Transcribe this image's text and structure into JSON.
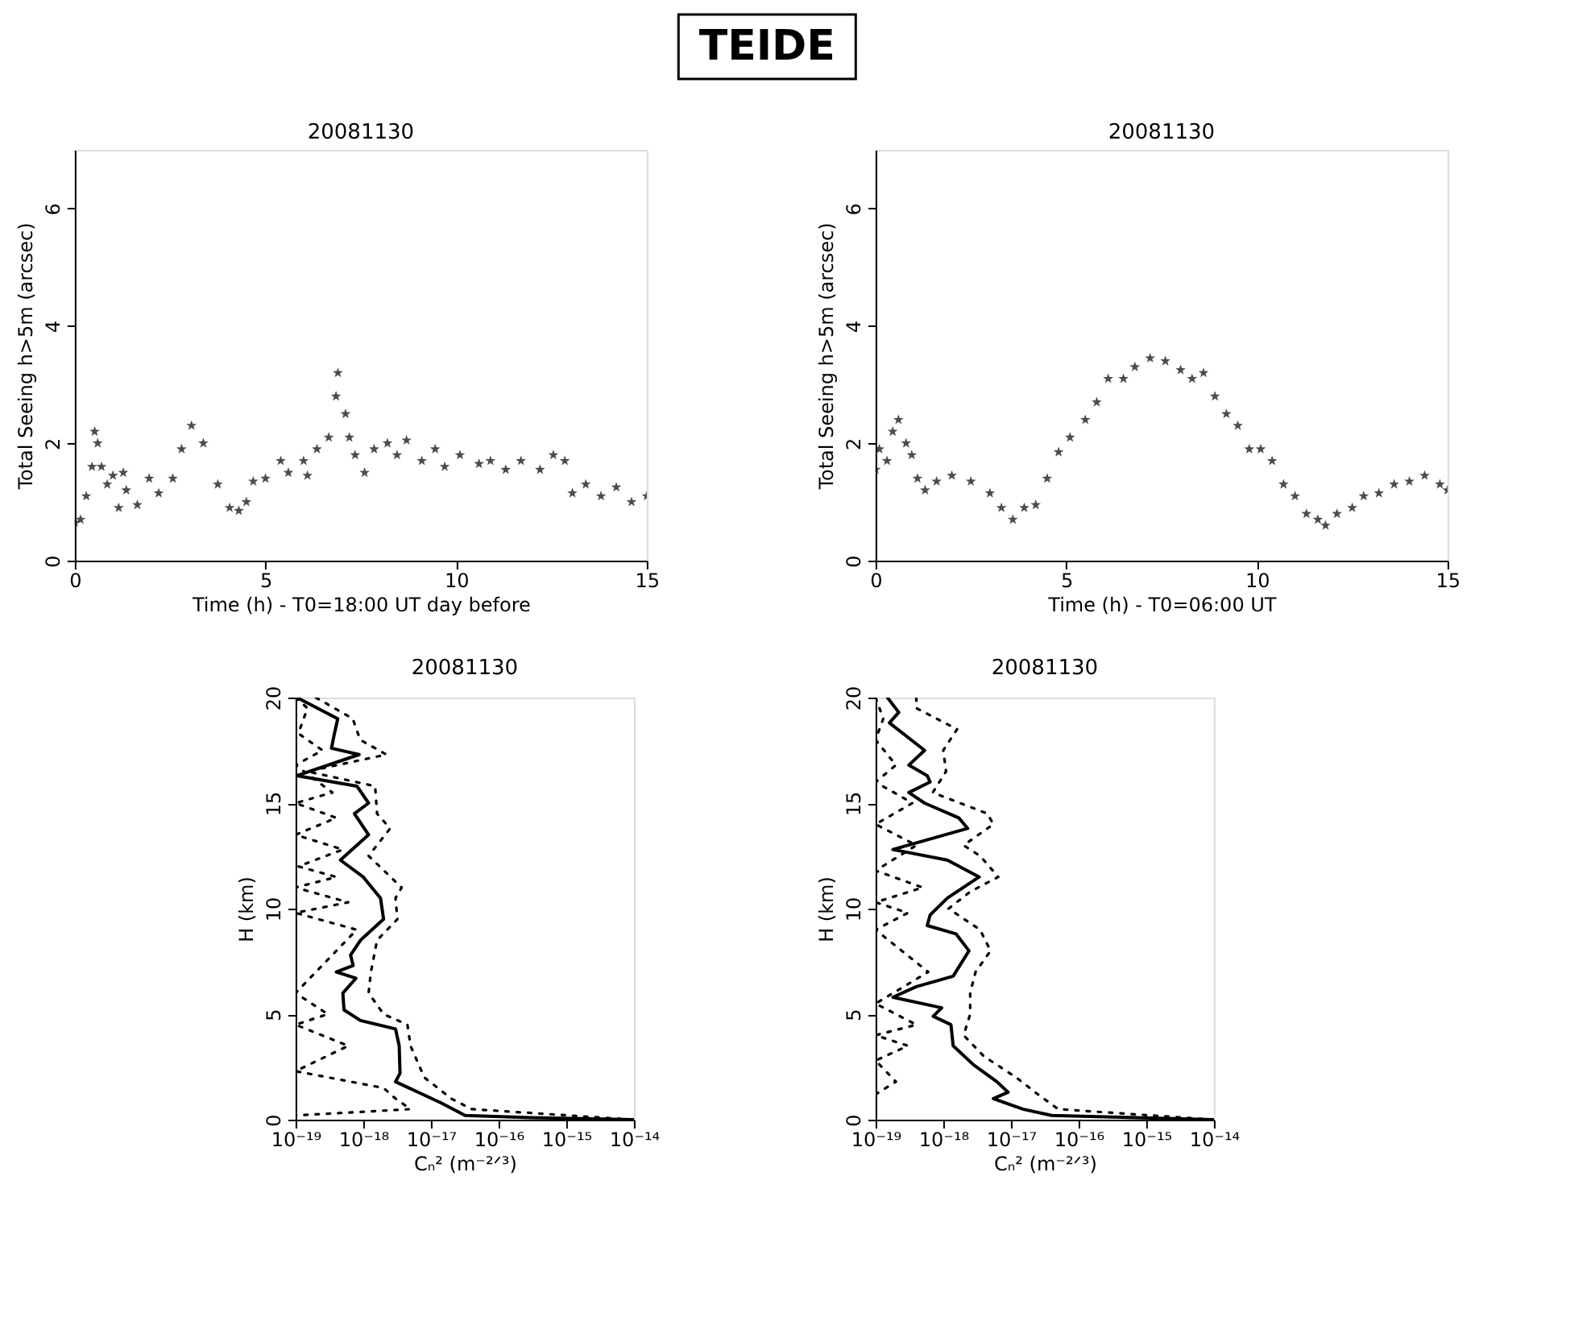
{
  "chart_data": [
    {
      "type": "other",
      "title": "TEIDE"
    },
    {
      "type": "scatter",
      "title": "20081130",
      "xlabel": "Time (h) - T0=18:00 UT day before",
      "ylabel": "Total Seeing h>5m (arcsec)",
      "xlim": [
        0,
        15
      ],
      "ylim": [
        0,
        7
      ],
      "xticks": [
        0,
        5,
        10,
        15
      ],
      "yticks": [
        0,
        2,
        4,
        6
      ],
      "marker": "star",
      "grid": false,
      "series": [
        {
          "color": "#000000",
          "x": [
            0,
            0.15,
            0.3,
            0.45,
            0.52,
            0.6,
            0.7,
            0.85,
            1.0,
            1.15,
            1.27,
            1.35,
            1.64,
            1.95,
            2.2,
            2.57,
            2.8,
            3.06,
            3.37,
            3.75,
            4.06,
            4.3,
            4.5,
            4.68,
            5.0,
            5.4,
            5.6,
            6.0,
            6.1,
            6.35,
            6.66,
            6.85,
            6.9,
            7.1,
            7.2,
            7.35,
            7.6,
            7.85,
            8.2,
            8.45,
            8.7,
            9.1,
            9.45,
            9.7,
            10.1,
            10.6,
            10.9,
            11.3,
            11.7,
            12.2,
            12.55,
            12.85,
            13.05,
            13.4,
            13.8,
            14.2,
            14.6,
            15.0
          ],
          "values": [
            0.65,
            0.7,
            1.1,
            1.6,
            2.2,
            2.0,
            1.6,
            1.3,
            1.45,
            0.9,
            1.5,
            1.2,
            0.95,
            1.4,
            1.15,
            1.4,
            1.9,
            2.3,
            2.0,
            1.3,
            0.9,
            0.85,
            1.0,
            1.35,
            1.4,
            1.7,
            1.5,
            1.7,
            1.45,
            1.9,
            2.1,
            2.8,
            3.2,
            2.5,
            2.1,
            1.8,
            1.5,
            1.9,
            2.0,
            1.8,
            2.05,
            1.7,
            1.9,
            1.6,
            1.8,
            1.65,
            1.7,
            1.55,
            1.7,
            1.55,
            1.8,
            1.7,
            1.15,
            1.3,
            1.1,
            1.25,
            1.0,
            1.1
          ]
        }
      ]
    },
    {
      "type": "scatter",
      "title": "20081130",
      "xlabel": "Time (h) - T0=06:00 UT",
      "ylabel": "Total Seeing h>5m (arcsec)",
      "xlim": [
        0,
        15
      ],
      "ylim": [
        0,
        7
      ],
      "xticks": [
        0,
        5,
        10,
        15
      ],
      "yticks": [
        0,
        2,
        4,
        6
      ],
      "marker": "star",
      "grid": false,
      "series": [
        {
          "color": "#000000",
          "x": [
            0,
            0.1,
            0.3,
            0.45,
            0.6,
            0.8,
            0.95,
            1.1,
            1.3,
            1.6,
            2.0,
            2.5,
            3.0,
            3.3,
            3.6,
            3.9,
            4.2,
            4.5,
            4.8,
            5.1,
            5.5,
            5.8,
            6.1,
            6.5,
            6.8,
            7.2,
            7.6,
            8.0,
            8.3,
            8.6,
            8.9,
            9.2,
            9.5,
            9.8,
            10.1,
            10.4,
            10.7,
            11.0,
            11.3,
            11.6,
            11.8,
            12.1,
            12.5,
            12.8,
            13.2,
            13.6,
            14.0,
            14.4,
            14.8,
            15.0
          ],
          "values": [
            1.55,
            1.9,
            1.7,
            2.2,
            2.4,
            2.0,
            1.8,
            1.4,
            1.2,
            1.35,
            1.45,
            1.35,
            1.15,
            0.9,
            0.7,
            0.9,
            0.95,
            1.4,
            1.85,
            2.1,
            2.4,
            2.7,
            3.1,
            3.1,
            3.3,
            3.45,
            3.4,
            3.25,
            3.1,
            3.2,
            2.8,
            2.5,
            2.3,
            1.9,
            1.9,
            1.7,
            1.3,
            1.1,
            0.8,
            0.7,
            0.6,
            0.8,
            0.9,
            1.1,
            1.15,
            1.3,
            1.35,
            1.45,
            1.3,
            1.2
          ]
        }
      ]
    },
    {
      "type": "line",
      "title": "20081130",
      "xlabel": "Cₙ² (m⁻²ᐟ³)",
      "ylabel": "H (km)",
      "log": "x",
      "xlim": [
        1e-19,
        1e-14
      ],
      "ylim": [
        0,
        20
      ],
      "xticks": [
        {
          "value": 1e-19,
          "label": "10⁻¹⁹"
        },
        {
          "value": 1e-18,
          "label": "10⁻¹⁸"
        },
        {
          "value": 1e-17,
          "label": "10⁻¹⁷"
        },
        {
          "value": 1e-16,
          "label": "10⁻¹⁶"
        },
        {
          "value": 1e-15,
          "label": "10⁻¹⁵"
        },
        {
          "value": 1e-14,
          "label": "10⁻¹⁴"
        }
      ],
      "yticks": [
        0,
        5,
        10,
        15,
        20
      ],
      "grid": false,
      "series": [
        {
          "color": "#000000",
          "line_style": "dotted",
          "x": [
            1e-19,
            1.5e-19,
            1.1e-19,
            2.5e-19,
            1e-19,
            3.5e-19,
            1e-19,
            4e-19,
            1e-19,
            5e-19,
            1.1e-19,
            4e-19,
            1e-19,
            6e-19,
            1e-19,
            8e-19,
            4e-19,
            2e-19,
            1e-19,
            3e-19,
            1e-19,
            6e-19,
            1e-19,
            2e-18,
            3e-18,
            5e-18,
            1e-19
          ],
          "values": [
            20,
            19.5,
            18.3,
            17.5,
            16.8,
            15.5,
            15.0,
            14.3,
            13.5,
            12.8,
            12.0,
            11.5,
            11.0,
            10.3,
            9.8,
            9.0,
            8.0,
            7.0,
            6.0,
            5.0,
            4.5,
            3.5,
            2.3,
            1.5,
            1.0,
            0.5,
            0.2
          ]
        },
        {
          "color": "#000000",
          "line_style": "dotted",
          "x": [
            2e-19,
            7e-19,
            9e-19,
            2.2e-18,
            1.5e-19,
            1.5e-18,
            1.6e-18,
            2.5e-18,
            1.2e-18,
            3.7e-18,
            3e-18,
            3.2e-18,
            1.6e-18,
            1.3e-18,
            1.2e-18,
            2e-18,
            4.5e-18,
            5e-18,
            8e-18,
            2e-17,
            4e-17,
            1e-14
          ],
          "values": [
            20,
            19,
            18,
            17.3,
            16.5,
            15.8,
            14.5,
            13.8,
            12.5,
            11.0,
            10.5,
            9.5,
            8.5,
            7.0,
            6.0,
            5.0,
            4.5,
            3.5,
            2.0,
            1.0,
            0.5,
            0
          ]
        },
        {
          "color": "#000000",
          "line_style": "solid",
          "x": [
            1.05e-19,
            4.2e-19,
            3.7e-19,
            3.4e-19,
            8.7e-19,
            1.05e-19,
            8.1e-19,
            1.2e-18,
            7.4e-19,
            1.2e-18,
            4.6e-19,
            1e-18,
            1.8e-18,
            2e-18,
            9.1e-19,
            6.5e-19,
            7.1e-19,
            4e-19,
            7.8e-19,
            5e-19,
            5.2e-19,
            9.1e-19,
            3e-18,
            3.4e-18,
            3.5e-18,
            3e-18,
            6.5e-18,
            1.4e-17,
            3.2e-17,
            3e-16,
            1e-14
          ],
          "values": [
            20,
            19,
            18.2,
            17.6,
            17.3,
            16.3,
            15.8,
            15.0,
            14.5,
            13.5,
            12.3,
            11.5,
            10.5,
            9.5,
            8.5,
            7.8,
            7.3,
            7.0,
            6.7,
            6.0,
            5.2,
            4.7,
            4.3,
            3.5,
            2.2,
            1.8,
            1.3,
            0.8,
            0.2,
            0.1,
            0
          ]
        }
      ]
    },
    {
      "type": "line",
      "title": "20081130",
      "xlabel": "Cₙ² (m⁻²ᐟ³)",
      "ylabel": "H (km)",
      "log": "x",
      "xlim": [
        1e-19,
        1e-14
      ],
      "ylim": [
        0,
        20
      ],
      "xticks": [
        {
          "value": 1e-19,
          "label": "10⁻¹⁹"
        },
        {
          "value": 1e-18,
          "label": "10⁻¹⁸"
        },
        {
          "value": 1e-17,
          "label": "10⁻¹⁷"
        },
        {
          "value": 1e-16,
          "label": "10⁻¹⁶"
        },
        {
          "value": 1e-15,
          "label": "10⁻¹⁵"
        },
        {
          "value": 1e-14,
          "label": "10⁻¹⁴"
        }
      ],
      "yticks": [
        0,
        5,
        10,
        15,
        20
      ],
      "grid": false,
      "series": [
        {
          "color": "#000000",
          "line_style": "dotted",
          "x": [
            1e-19,
            1.3e-19,
            1e-19,
            2e-19,
            1e-19,
            3.5e-19,
            1e-19,
            4e-19,
            1e-19,
            5e-19,
            1e-19,
            3e-19,
            1e-19,
            6e-19,
            1e-19,
            4e-19,
            1e-19,
            3e-19,
            1e-19,
            2e-19,
            1e-19,
            1e-19
          ],
          "values": [
            20,
            19,
            18,
            16.8,
            16.0,
            15.0,
            14.0,
            13.0,
            11.8,
            11.0,
            10.3,
            9.8,
            9.0,
            7.0,
            5.5,
            4.5,
            4.0,
            3.5,
            2.8,
            1.8,
            1.2,
            0.2
          ]
        },
        {
          "color": "#000000",
          "line_style": "dotted",
          "x": [
            4e-19,
            4e-19,
            1.6e-18,
            1e-18,
            1.1e-18,
            7e-19,
            4.5e-18,
            5.5e-18,
            2e-18,
            3.5e-18,
            6.5e-18,
            2.5e-18,
            1.2e-18,
            3.5e-18,
            5e-18,
            3e-18,
            2.5e-18,
            2.5e-18,
            2e-18,
            4e-18,
            1.2e-17,
            2.5e-17,
            5e-17,
            1e-14
          ],
          "values": [
            20,
            19.5,
            18.5,
            17.5,
            16.5,
            15.5,
            14.5,
            14.0,
            13.0,
            12.5,
            11.5,
            10.8,
            10.0,
            9.0,
            8.0,
            7.0,
            6.0,
            5.0,
            4.0,
            3.0,
            2.0,
            1.2,
            0.5,
            0
          ]
        },
        {
          "color": "#000000",
          "line_style": "solid",
          "x": [
            1.5e-19,
            2.2e-19,
            1.6e-19,
            5.3e-19,
            3.1e-19,
            5.8e-19,
            6.4e-19,
            3.1e-19,
            5.3e-19,
            1.7e-18,
            2.3e-18,
            1.8e-19,
            1.15e-18,
            3.4e-18,
            1.15e-18,
            6.4e-19,
            5.8e-19,
            1.55e-18,
            2.4e-18,
            1.4e-18,
            4e-19,
            1.8e-19,
            9.5e-19,
            7.1e-19,
            1.3e-18,
            1.4e-18,
            2.8e-18,
            6.2e-18,
            9.1e-18,
            5.5e-18,
            1.5e-17,
            4e-17,
            1e-14
          ],
          "values": [
            20,
            19.3,
            18.8,
            17.5,
            16.8,
            16.3,
            16.0,
            15.5,
            15.0,
            14.3,
            13.8,
            12.8,
            12.3,
            11.5,
            10.5,
            9.7,
            9.2,
            8.8,
            8.0,
            6.8,
            6.3,
            5.8,
            5.3,
            4.9,
            4.5,
            3.5,
            2.6,
            1.8,
            1.3,
            1.0,
            0.5,
            0.2,
            0
          ]
        }
      ]
    }
  ]
}
